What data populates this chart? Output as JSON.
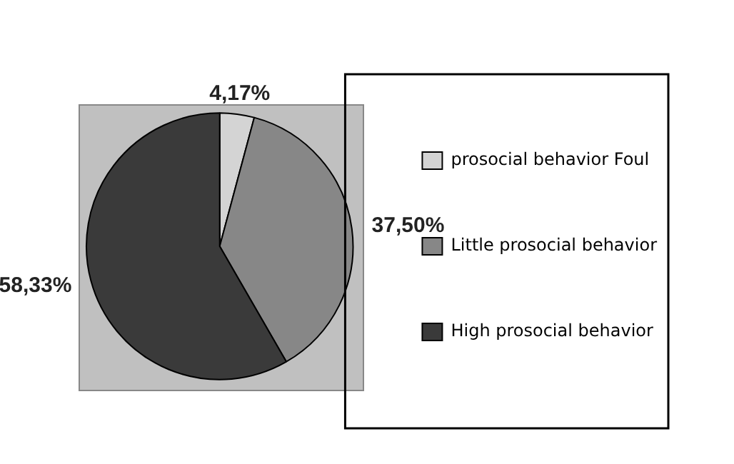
{
  "chart_data": {
    "type": "pie",
    "categories": [
      "prosocial behavior Foul",
      "Little prosocial behavior",
      "High prosocial behavior"
    ],
    "values": [
      4.17,
      37.5,
      58.33
    ],
    "colors": [
      "#d4d4d4",
      "#878787",
      "#3a3a3a"
    ],
    "value_labels": [
      "4,17%",
      "37,50%",
      "58,33%"
    ],
    "legend": "right"
  }
}
